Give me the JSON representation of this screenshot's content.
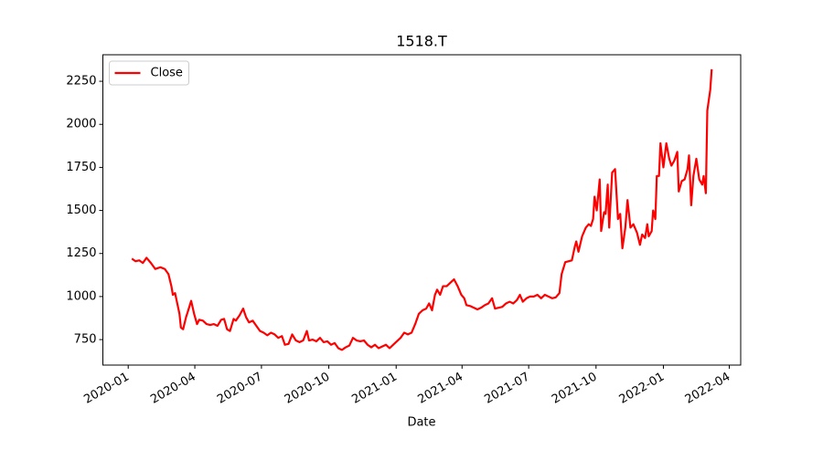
{
  "chart_data": {
    "type": "line",
    "title": "1518.T",
    "xlabel": "Date",
    "xlim": [
      -34.6,
      836.6
    ],
    "xticks": [
      {
        "value": 0,
        "label": "2020-01"
      },
      {
        "value": 91,
        "label": "2020-04"
      },
      {
        "value": 182,
        "label": "2020-07"
      },
      {
        "value": 274,
        "label": "2020-10"
      },
      {
        "value": 366,
        "label": "2021-01"
      },
      {
        "value": 456,
        "label": "2021-04"
      },
      {
        "value": 547,
        "label": "2021-07"
      },
      {
        "value": 639,
        "label": "2021-10"
      },
      {
        "value": 731,
        "label": "2022-01"
      },
      {
        "value": 821,
        "label": "2022-04"
      }
    ],
    "ylim": [
      602,
      2404
    ],
    "yticks": [
      750,
      1000,
      1250,
      1500,
      1750,
      2000,
      2250
    ],
    "legend": "upper left",
    "x": [
      5,
      10,
      15,
      20,
      25,
      31,
      37,
      44,
      50,
      55,
      59,
      61,
      64,
      67,
      70,
      72,
      75,
      79,
      82,
      86,
      90,
      94,
      97,
      102,
      107,
      112,
      117,
      122,
      127,
      131,
      135,
      139,
      144,
      147,
      152,
      157,
      161,
      165,
      170,
      175,
      180,
      185,
      190,
      195,
      200,
      205,
      210,
      214,
      219,
      224,
      229,
      234,
      239,
      244,
      247,
      252,
      257,
      262,
      267,
      272,
      277,
      282,
      287,
      292,
      297,
      302,
      307,
      312,
      317,
      322,
      327,
      332,
      337,
      342,
      347,
      352,
      357,
      362,
      367,
      372,
      377,
      382,
      387,
      392,
      397,
      402,
      407,
      411,
      415,
      419,
      422,
      426,
      430,
      435,
      440,
      445,
      450,
      455,
      459,
      462,
      467,
      472,
      477,
      482,
      487,
      492,
      497,
      501,
      506,
      511,
      516,
      521,
      526,
      531,
      535,
      539,
      544,
      549,
      554,
      559,
      564,
      569,
      574,
      579,
      584,
      589,
      592,
      597,
      606,
      610,
      612,
      615,
      620,
      625,
      629,
      632,
      635,
      637,
      640,
      644,
      646,
      650,
      652,
      655,
      657,
      661,
      665,
      669,
      672,
      675,
      679,
      682,
      686,
      690,
      695,
      699,
      702,
      706,
      709,
      711,
      715,
      717,
      720,
      722,
      725,
      727,
      731,
      735,
      739,
      742,
      746,
      750,
      752,
      756,
      760,
      764,
      766,
      769,
      772,
      776,
      780,
      784,
      786,
      789,
      791,
      795,
      797
    ],
    "series": [
      {
        "name": "Close",
        "color": "#ff0000",
        "values": [
          1220,
          1205,
          1210,
          1195,
          1225,
          1195,
          1160,
          1170,
          1160,
          1130,
          1060,
          1010,
          1020,
          960,
          900,
          820,
          810,
          880,
          920,
          975,
          900,
          840,
          865,
          860,
          840,
          835,
          840,
          830,
          865,
          870,
          810,
          800,
          870,
          860,
          890,
          930,
          880,
          850,
          860,
          830,
          800,
          790,
          775,
          790,
          780,
          760,
          770,
          720,
          725,
          780,
          745,
          735,
          745,
          800,
          745,
          750,
          740,
          760,
          735,
          740,
          720,
          730,
          700,
          690,
          705,
          715,
          760,
          745,
          740,
          745,
          720,
          705,
          720,
          700,
          710,
          720,
          700,
          720,
          740,
          760,
          790,
          780,
          790,
          840,
          900,
          920,
          930,
          960,
          920,
          1010,
          1040,
          1010,
          1060,
          1060,
          1080,
          1100,
          1060,
          1010,
          990,
          950,
          945,
          935,
          925,
          935,
          950,
          960,
          990,
          930,
          935,
          940,
          960,
          970,
          960,
          980,
          1010,
          970,
          990,
          1000,
          1000,
          1010,
          990,
          1010,
          1000,
          990,
          995,
          1020,
          1130,
          1200,
          1210,
          1290,
          1320,
          1260,
          1350,
          1400,
          1420,
          1410,
          1450,
          1580,
          1500,
          1680,
          1380,
          1490,
          1480,
          1650,
          1400,
          1720,
          1740,
          1450,
          1480,
          1280,
          1400,
          1560,
          1400,
          1420,
          1370,
          1300,
          1360,
          1340,
          1420,
          1350,
          1380,
          1500,
          1450,
          1700,
          1700,
          1890,
          1750,
          1890,
          1800,
          1760,
          1790,
          1840,
          1610,
          1670,
          1680,
          1740,
          1820,
          1530,
          1700,
          1800,
          1680,
          1650,
          1700,
          1600,
          2080,
          2200,
          2320
        ]
      }
    ]
  }
}
